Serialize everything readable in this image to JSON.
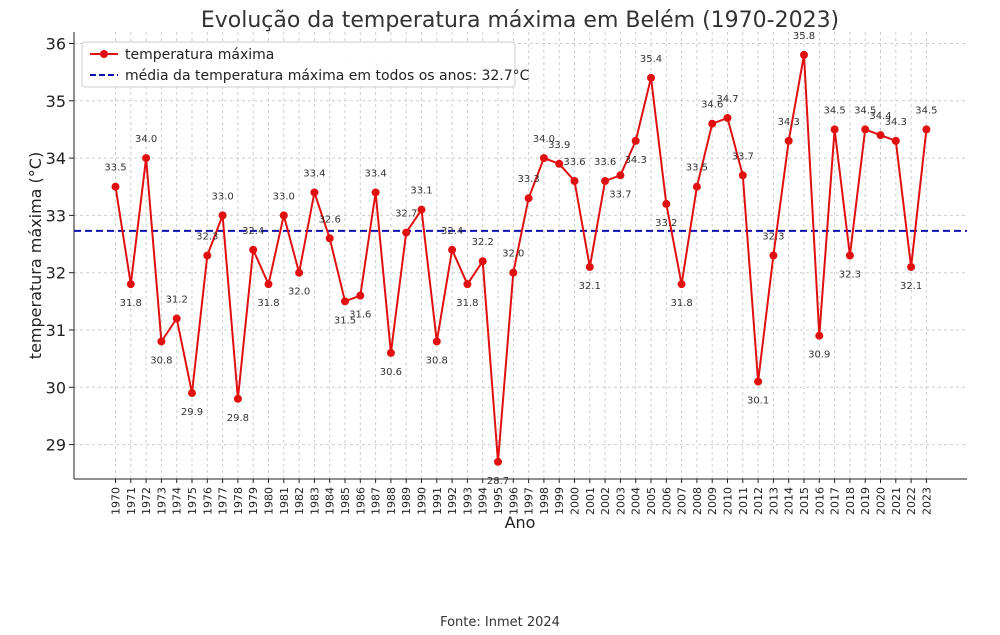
{
  "chart_data": {
    "type": "line",
    "title": "Evolução da temperatura máxima em Belém (1970-2023)",
    "xlabel": "Ano",
    "ylabel": "temperatura máxima (°C)",
    "ylim": [
      28.4,
      36.2
    ],
    "yticks": [
      29,
      30,
      31,
      32,
      33,
      34,
      35,
      36
    ],
    "grid": true,
    "legend_position": "top-left",
    "categories": [
      "1970",
      "1971",
      "1972",
      "1973",
      "1974",
      "1975",
      "1976",
      "1977",
      "1978",
      "1979",
      "1980",
      "1981",
      "1982",
      "1983",
      "1984",
      "1985",
      "1986",
      "1987",
      "1988",
      "1989",
      "1990",
      "1991",
      "1992",
      "1993",
      "1994",
      "1995",
      "1996",
      "1997",
      "1998",
      "1999",
      "2000",
      "2001",
      "2002",
      "2003",
      "2004",
      "2005",
      "2006",
      "2007",
      "2008",
      "2009",
      "2010",
      "2011",
      "2012",
      "2013",
      "2014",
      "2015",
      "2016",
      "2017",
      "2018",
      "2019",
      "2020",
      "2021",
      "2022",
      "2023"
    ],
    "series": [
      {
        "name": "temperatura máxima",
        "color": "#e01010",
        "values": [
          33.5,
          31.8,
          34.0,
          30.8,
          31.2,
          29.9,
          32.3,
          33.0,
          29.8,
          32.4,
          31.8,
          33.0,
          32.0,
          33.4,
          32.6,
          31.5,
          31.6,
          33.4,
          30.6,
          32.7,
          33.1,
          30.8,
          32.4,
          31.8,
          32.2,
          28.7,
          32.0,
          33.3,
          34.0,
          33.9,
          33.6,
          32.1,
          33.6,
          33.7,
          34.3,
          35.4,
          33.2,
          31.8,
          33.5,
          34.6,
          34.7,
          33.7,
          30.1,
          32.3,
          34.3,
          35.8,
          30.9,
          34.5,
          32.3,
          34.5,
          34.4,
          34.3,
          32.1,
          34.5
        ]
      }
    ],
    "reference_line": {
      "label": "média da temperatura máxima em todos os anos: 32.7°C",
      "value": 32.73,
      "color": "#1010b0"
    }
  },
  "source": "Fonte: Inmet 2024"
}
